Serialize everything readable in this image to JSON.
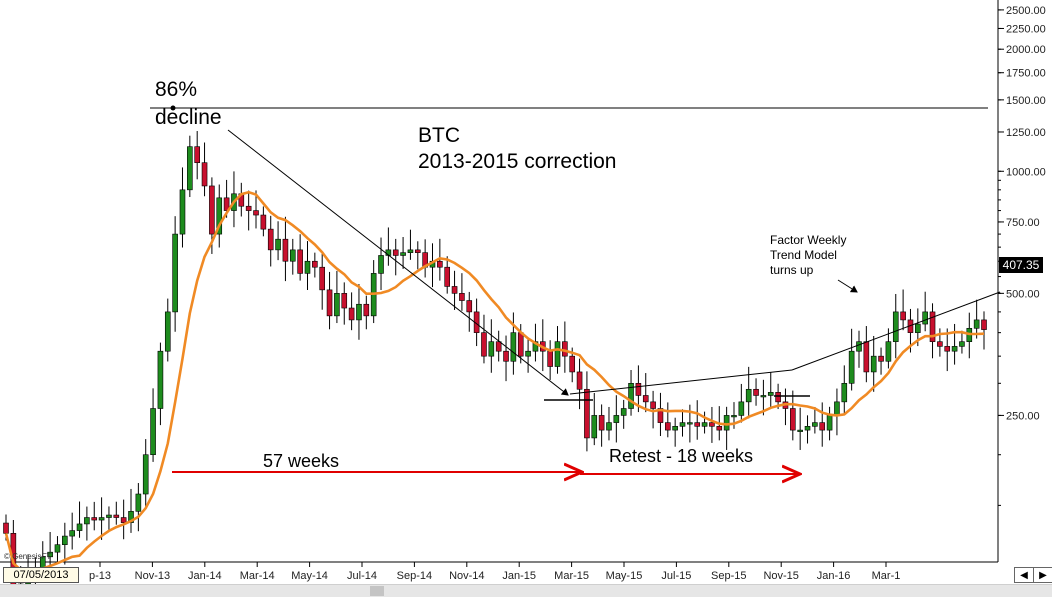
{
  "chart_data": {
    "type": "candlestick",
    "ticker": "BTC",
    "scale": "log",
    "ylim": [
      110,
      2600
    ],
    "y_ticks": [
      "2500.00",
      "2250.00",
      "2000.00",
      "1750.00",
      "1500.00",
      "1250.00",
      "1000.00",
      "750.00",
      "500.00",
      "250.00"
    ],
    "x_ticks": [
      "p-13",
      "Nov-13",
      "Jan-14",
      "Mar-14",
      "May-14",
      "Jul-14",
      "Sep-14",
      "Nov-14",
      "Jan-15",
      "Mar-15",
      "May-15",
      "Jul-15",
      "Sep-15",
      "Nov-15",
      "Jan-16",
      "Mar-1"
    ],
    "last_price": "407.35",
    "start_date": "07/05/2013",
    "watermark": "© GenesisFT",
    "annotations": {
      "decline": [
        "86%",
        "decline"
      ],
      "title": [
        "BTC",
        "2013-2015 correction"
      ],
      "factor": [
        "Factor Weekly",
        "Trend Model",
        "turns up"
      ],
      "weeks_57": "57 weeks",
      "retest": "Retest - 18 weeks"
    },
    "reference_level": 1200,
    "candle_closes": [
      128,
      88,
      96,
      100,
      105,
      112,
      115,
      120,
      126,
      130,
      135,
      140,
      138,
      140,
      142,
      140,
      136,
      145,
      160,
      200,
      260,
      360,
      450,
      700,
      900,
      1150,
      1050,
      920,
      700,
      860,
      800,
      880,
      820,
      800,
      780,
      720,
      640,
      680,
      600,
      640,
      560,
      600,
      580,
      510,
      440,
      500,
      460,
      430,
      470,
      440,
      560,
      620,
      640,
      620,
      630,
      640,
      630,
      580,
      600,
      580,
      520,
      500,
      480,
      450,
      400,
      350,
      380,
      360,
      340,
      400,
      350,
      360,
      380,
      360,
      330,
      380,
      350,
      320,
      290,
      220,
      250,
      230,
      240,
      250,
      260,
      300,
      280,
      270,
      260,
      240,
      230,
      235,
      240,
      240,
      235,
      240,
      235,
      230,
      250,
      250,
      270,
      290,
      280,
      280,
      285,
      270,
      260,
      230,
      230,
      235,
      240,
      230,
      250,
      270,
      300,
      360,
      380,
      320,
      350,
      340,
      380,
      450,
      430,
      400,
      420,
      450,
      380,
      370,
      360,
      370,
      380,
      410,
      430,
      407
    ]
  }
}
